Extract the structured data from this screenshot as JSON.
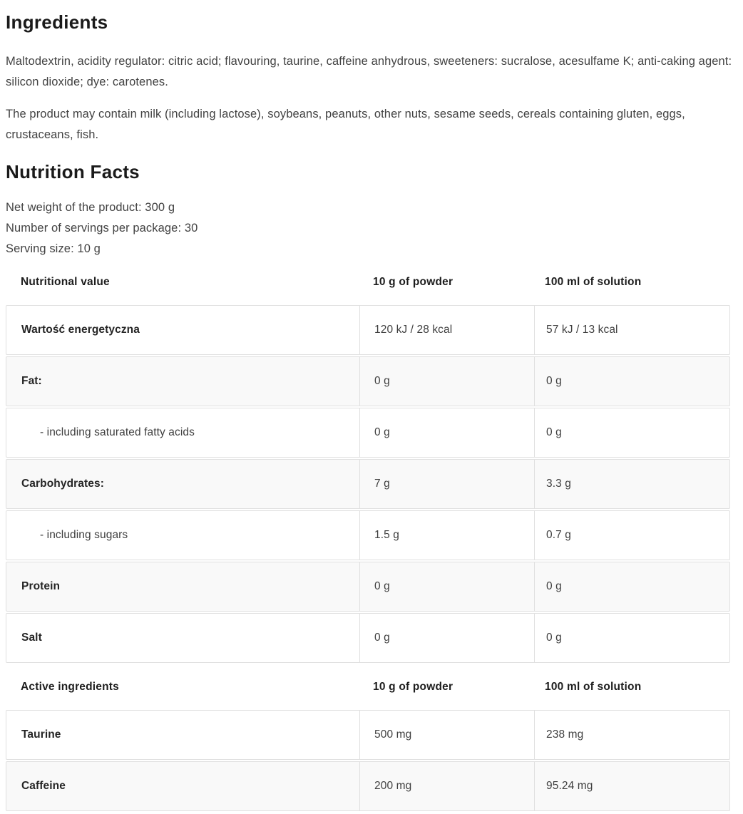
{
  "ingredients": {
    "title": "Ingredients",
    "composition": "Maltodextrin, acidity regulator: citric acid; flavouring, taurine, caffeine anhydrous, sweeteners: sucralose, acesulfame K; anti-caking agent: silicon dioxide; dye: carotenes.",
    "allergens": "The product may contain milk (including lactose), soybeans, peanuts, other nuts, sesame seeds, cereals containing gluten, eggs, crustaceans, fish."
  },
  "nutrition": {
    "title": "Nutrition Facts",
    "net_weight": "Net weight of the product: 300 g",
    "servings": "Number of servings per package: 30",
    "serving_size": "Serving size: 10 g",
    "table": {
      "sections": [
        {
          "header": [
            "Nutritional value",
            "10 g of powder",
            "100 ml of solution"
          ],
          "rows": [
            {
              "label": "Wartość energetyczna",
              "indent": false,
              "powder": "120 kJ / 28 kcal",
              "solution": "57 kJ / 13 kcal"
            },
            {
              "label": "Fat:",
              "indent": false,
              "powder": "0 g",
              "solution": "0 g"
            },
            {
              "label": "- including saturated fatty acids",
              "indent": true,
              "powder": "0 g",
              "solution": "0 g"
            },
            {
              "label": "Carbohydrates:",
              "indent": false,
              "powder": "7 g",
              "solution": "3.3 g"
            },
            {
              "label": "- including sugars",
              "indent": true,
              "powder": "1.5 g",
              "solution": "0.7 g"
            },
            {
              "label": "Protein",
              "indent": false,
              "powder": "0 g",
              "solution": "0 g"
            },
            {
              "label": "Salt",
              "indent": false,
              "powder": "0 g",
              "solution": "0 g"
            }
          ]
        },
        {
          "header": [
            "Active ingredients",
            "10 g of powder",
            "100 ml of solution"
          ],
          "rows": [
            {
              "label": "Taurine",
              "indent": false,
              "powder": "500 mg",
              "solution": "238 mg"
            },
            {
              "label": "Caffeine",
              "indent": false,
              "powder": "200 mg",
              "solution": "95.24 mg"
            }
          ]
        }
      ]
    }
  },
  "colors": {
    "heading_text": "#1a1a1a",
    "body_text": "#424242",
    "row_border": "#e0e0e0",
    "row_alt_bg": "#f9f9f9"
  }
}
